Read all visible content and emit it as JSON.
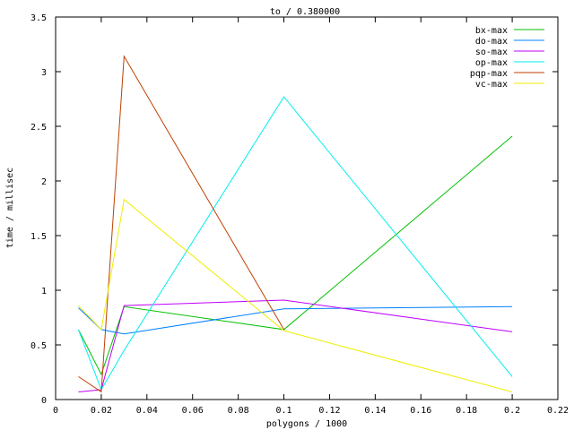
{
  "chart_data": {
    "type": "line",
    "title": "to / 0.380000",
    "xlabel": "polygons / 1000",
    "ylabel": "time / millisec",
    "xlim": [
      0,
      0.22
    ],
    "ylim": [
      0,
      3.5
    ],
    "xticks": [
      "0",
      "0.02",
      "0.04",
      "0.06",
      "0.08",
      "0.1",
      "0.12",
      "0.14",
      "0.16",
      "0.18",
      "0.2",
      "0.22"
    ],
    "xtick_values": [
      0,
      0.02,
      0.04,
      0.06,
      0.08,
      0.1,
      0.12,
      0.14,
      0.16,
      0.18,
      0.2,
      0.22
    ],
    "yticks": [
      "0",
      "0.5",
      "1",
      "1.5",
      "2",
      "2.5",
      "3",
      "3.5"
    ],
    "ytick_values": [
      0,
      0.5,
      1,
      1.5,
      2,
      2.5,
      3,
      3.5
    ],
    "grid": false,
    "legend_position": "top-right",
    "series": [
      {
        "name": "bx-max",
        "color": "#00c000",
        "x": [
          0.01,
          0.02,
          0.03,
          0.1,
          0.2
        ],
        "values": [
          0.64,
          0.23,
          0.85,
          0.64,
          2.41
        ]
      },
      {
        "name": "do-max",
        "color": "#0080ff",
        "x": [
          0.01,
          0.02,
          0.03,
          0.1,
          0.2
        ],
        "values": [
          0.84,
          0.64,
          0.6,
          0.83,
          0.85
        ]
      },
      {
        "name": "so-max",
        "color": "#c000ff",
        "x": [
          0.01,
          0.02,
          0.03,
          0.1,
          0.2
        ],
        "values": [
          0.07,
          0.09,
          0.86,
          0.91,
          0.62
        ]
      },
      {
        "name": "op-max",
        "color": "#00eeee",
        "x": [
          0.01,
          0.02,
          0.03,
          0.1,
          0.2
        ],
        "values": [
          0.64,
          0.09,
          0.45,
          2.77,
          0.21
        ]
      },
      {
        "name": "pqp-max",
        "color": "#c04000",
        "x": [
          0.01,
          0.02,
          0.03,
          0.1
        ],
        "values": [
          0.21,
          0.07,
          3.14,
          0.64
        ]
      },
      {
        "name": "vc-max",
        "color": "#eeee00",
        "x": [
          0.01,
          0.02,
          0.03,
          0.1,
          0.2
        ],
        "values": [
          0.86,
          0.64,
          1.83,
          0.63,
          0.07
        ]
      }
    ]
  }
}
